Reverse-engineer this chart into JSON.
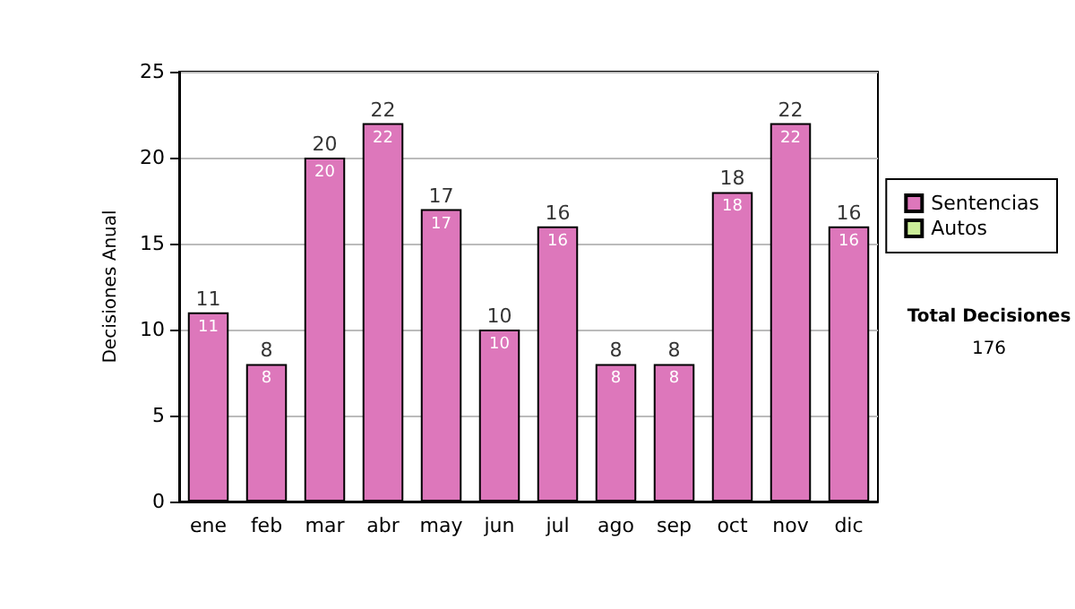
{
  "chart_data": {
    "type": "bar",
    "ylabel": "Decisiones Anual",
    "categories": [
      "ene",
      "feb",
      "mar",
      "abr",
      "may",
      "jun",
      "jul",
      "ago",
      "sep",
      "oct",
      "nov",
      "dic"
    ],
    "series": [
      {
        "name": "Sentencias",
        "color": "#dd77bb",
        "values": [
          11,
          8,
          20,
          22,
          17,
          10,
          16,
          8,
          8,
          18,
          22,
          16
        ],
        "value_labels": [
          "11",
          "8",
          "20",
          "22",
          "17",
          "10",
          "16",
          "8",
          "8",
          "18",
          "22",
          "16"
        ]
      },
      {
        "name": "Autos",
        "color": "#ccee99",
        "values": [
          null,
          null,
          null,
          null,
          null,
          null,
          null,
          null,
          null,
          null,
          null,
          null
        ]
      }
    ],
    "stacked": true,
    "totals": [
      "11",
      "8",
      "20",
      "22",
      "17",
      "10",
      "16",
      "8",
      "8",
      "18",
      "22",
      "16"
    ],
    "ylim": [
      0,
      25
    ],
    "yticks": [
      0,
      5,
      10,
      15,
      20,
      25
    ],
    "grid": "y",
    "legend": "right",
    "annotations": [
      "Total Decisiones",
      "176"
    ]
  }
}
